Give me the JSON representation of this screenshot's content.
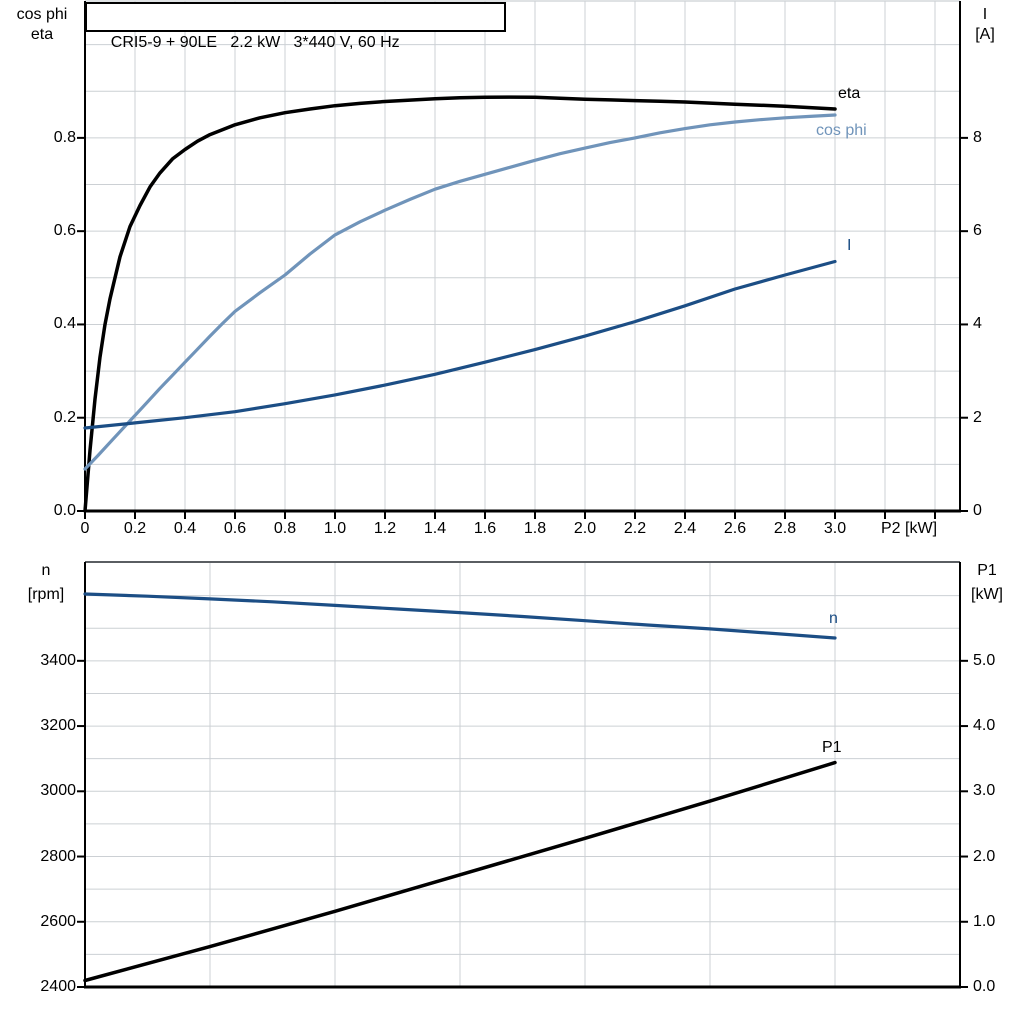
{
  "title": "CRI5-9 + 90LE   2.2 kW   3*440 V, 60 Hz",
  "chart_data": [
    {
      "id": "top",
      "type": "line",
      "title": "CRI5-9 + 90LE   2.2 kW   3*440 V, 60 Hz",
      "grid_color": "#ccd0d4",
      "frame_color": "#000000",
      "top_border_color": "#ccd0d4",
      "x_axis": {
        "label": "P2 [kW]",
        "min": 0,
        "max": 3.5,
        "grid_step": 0.2,
        "tick_end": 3.4,
        "tick_labels": [
          "0",
          "0.2",
          "0.4",
          "0.6",
          "0.8",
          "1.0",
          "1.2",
          "1.4",
          "1.6",
          "1.8",
          "2.0",
          "2.2",
          "2.4",
          "2.6",
          "2.8",
          "3.0"
        ]
      },
      "left_axis": {
        "name_lines": [
          "cos phi",
          "eta"
        ],
        "min": 0,
        "max": 1.0935,
        "grid_step": 0.1,
        "tick_labels": [
          "0.0",
          "0.2",
          "0.4",
          "0.6",
          "0.8"
        ]
      },
      "right_axis": {
        "name_lines": [
          "I",
          "[A]"
        ],
        "min": 0,
        "max": 10.935,
        "grid_step": 1,
        "tick_labels": [
          "0",
          "2",
          "4",
          "6",
          "8"
        ]
      },
      "series": [
        {
          "name": "eta",
          "label": "eta",
          "axis": "left",
          "color": "#000000",
          "width": 3.5,
          "points": [
            [
              0,
              0
            ],
            [
              0.02,
              0.13
            ],
            [
              0.04,
              0.24
            ],
            [
              0.06,
              0.33
            ],
            [
              0.08,
              0.4
            ],
            [
              0.1,
              0.455
            ],
            [
              0.14,
              0.545
            ],
            [
              0.18,
              0.61
            ],
            [
              0.22,
              0.655
            ],
            [
              0.26,
              0.695
            ],
            [
              0.3,
              0.725
            ],
            [
              0.35,
              0.755
            ],
            [
              0.4,
              0.775
            ],
            [
              0.45,
              0.793
            ],
            [
              0.5,
              0.807
            ],
            [
              0.6,
              0.828
            ],
            [
              0.7,
              0.843
            ],
            [
              0.8,
              0.854
            ],
            [
              0.9,
              0.862
            ],
            [
              1.0,
              0.869
            ],
            [
              1.1,
              0.874
            ],
            [
              1.2,
              0.878
            ],
            [
              1.3,
              0.881
            ],
            [
              1.4,
              0.884
            ],
            [
              1.5,
              0.886
            ],
            [
              1.6,
              0.887
            ],
            [
              1.7,
              0.8875
            ],
            [
              1.8,
              0.887
            ],
            [
              1.9,
              0.885
            ],
            [
              2.0,
              0.883
            ],
            [
              2.1,
              0.8815
            ],
            [
              2.2,
              0.88
            ],
            [
              2.3,
              0.8785
            ],
            [
              2.4,
              0.877
            ],
            [
              2.5,
              0.8745
            ],
            [
              2.6,
              0.872
            ],
            [
              2.7,
              0.87
            ],
            [
              2.8,
              0.868
            ],
            [
              2.9,
              0.865
            ],
            [
              3.0,
              0.862
            ]
          ]
        },
        {
          "name": "cos_phi",
          "label": "cos phi",
          "axis": "left",
          "color": "#7094ba",
          "width": 3.2,
          "points": [
            [
              0,
              0.09
            ],
            [
              0.05,
              0.118
            ],
            [
              0.1,
              0.147
            ],
            [
              0.15,
              0.176
            ],
            [
              0.2,
              0.205
            ],
            [
              0.25,
              0.234
            ],
            [
              0.3,
              0.263
            ],
            [
              0.35,
              0.291
            ],
            [
              0.4,
              0.319
            ],
            [
              0.45,
              0.347
            ],
            [
              0.5,
              0.375
            ],
            [
              0.55,
              0.402
            ],
            [
              0.6,
              0.428
            ],
            [
              0.7,
              0.468
            ],
            [
              0.8,
              0.506
            ],
            [
              0.9,
              0.551
            ],
            [
              1.0,
              0.592
            ],
            [
              1.1,
              0.62
            ],
            [
              1.2,
              0.645
            ],
            [
              1.3,
              0.668
            ],
            [
              1.4,
              0.69
            ],
            [
              1.5,
              0.707
            ],
            [
              1.6,
              0.722
            ],
            [
              1.7,
              0.737
            ],
            [
              1.8,
              0.752
            ],
            [
              1.9,
              0.766
            ],
            [
              2.0,
              0.778
            ],
            [
              2.1,
              0.79
            ],
            [
              2.2,
              0.8
            ],
            [
              2.3,
              0.811
            ],
            [
              2.4,
              0.82
            ],
            [
              2.5,
              0.828
            ],
            [
              2.6,
              0.834
            ],
            [
              2.7,
              0.839
            ],
            [
              2.8,
              0.843
            ],
            [
              2.9,
              0.846
            ],
            [
              3.0,
              0.849
            ]
          ]
        },
        {
          "name": "I",
          "label": "I",
          "axis": "right",
          "color": "#1c4e85",
          "width": 3.2,
          "points": [
            [
              0,
              1.78
            ],
            [
              0.2,
              1.89
            ],
            [
              0.4,
              2.0
            ],
            [
              0.6,
              2.13
            ],
            [
              0.8,
              2.3
            ],
            [
              1.0,
              2.49
            ],
            [
              1.2,
              2.7
            ],
            [
              1.4,
              2.93
            ],
            [
              1.6,
              3.19
            ],
            [
              1.8,
              3.46
            ],
            [
              2.0,
              3.75
            ],
            [
              2.2,
              4.06
            ],
            [
              2.4,
              4.4
            ],
            [
              2.6,
              4.76
            ],
            [
              2.8,
              5.06
            ],
            [
              3.0,
              5.35
            ]
          ]
        }
      ]
    },
    {
      "id": "bottom",
      "type": "line",
      "title": "",
      "grid_color": "#ccd0d4",
      "frame_color": "#000000",
      "top_border_color": "#5a5e62",
      "x_axis": {
        "label": "",
        "min": 0,
        "max": 3.5,
        "grid_step": 0.5,
        "tick_end": 0,
        "tick_labels": []
      },
      "left_axis": {
        "name_lines": [
          "n",
          "[rpm]"
        ],
        "min": 2400,
        "max": 3703,
        "grid_step": 100,
        "tick_labels": [
          "2400",
          "2600",
          "2800",
          "3000",
          "3200",
          "3400"
        ]
      },
      "right_axis": {
        "name_lines": [
          "P1",
          "[kW]"
        ],
        "min": 0,
        "max": 6.515,
        "grid_step": 0.5,
        "tick_labels": [
          "0.0",
          "1.0",
          "2.0",
          "3.0",
          "4.0",
          "5.0"
        ]
      },
      "series": [
        {
          "name": "n",
          "label": "n",
          "axis": "left",
          "color": "#1c4e85",
          "width": 3.2,
          "points": [
            [
              0,
              3605
            ],
            [
              0.25,
              3598
            ],
            [
              0.5,
              3590
            ],
            [
              0.75,
              3581
            ],
            [
              1.0,
              3570
            ],
            [
              1.25,
              3559
            ],
            [
              1.5,
              3548
            ],
            [
              1.75,
              3536
            ],
            [
              2.0,
              3523
            ],
            [
              2.25,
              3510
            ],
            [
              2.5,
              3498
            ],
            [
              2.75,
              3484
            ],
            [
              3.0,
              3470
            ]
          ]
        },
        {
          "name": "P1",
          "label": "P1",
          "axis": "right",
          "color": "#000000",
          "width": 3.5,
          "points": [
            [
              0,
              0.1
            ],
            [
              0.5,
              0.62
            ],
            [
              1.0,
              1.16
            ],
            [
              1.5,
              1.72
            ],
            [
              2.0,
              2.28
            ],
            [
              2.5,
              2.85
            ],
            [
              3.0,
              3.44
            ]
          ]
        }
      ]
    }
  ]
}
